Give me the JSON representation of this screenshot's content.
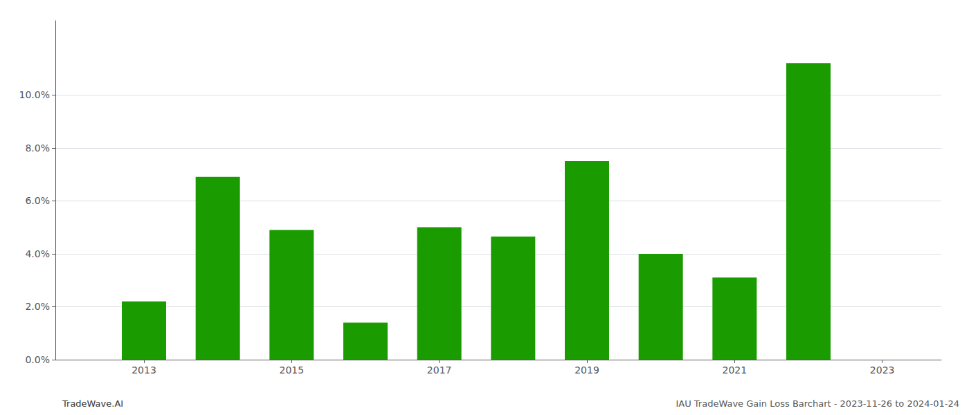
{
  "chart_data": {
    "type": "bar",
    "x": [
      2013,
      2014,
      2015,
      2016,
      2017,
      2018,
      2019,
      2020,
      2021,
      2022
    ],
    "values": [
      0.022,
      0.069,
      0.049,
      0.014,
      0.05,
      0.0465,
      0.075,
      0.04,
      0.031,
      0.112
    ],
    "color": "#1a9c00",
    "xlim": [
      2011.8,
      2023.8
    ],
    "xticks": [
      2013,
      2015,
      2017,
      2019,
      2021,
      2023
    ],
    "ylim": [
      0.0,
      0.128
    ],
    "yticks": [
      {
        "value": 0.0,
        "label": "0.0%"
      },
      {
        "value": 0.02,
        "label": "2.0%"
      },
      {
        "value": 0.04,
        "label": "4.0%"
      },
      {
        "value": 0.06,
        "label": "6.0%"
      },
      {
        "value": 0.08,
        "label": "8.0%"
      },
      {
        "value": 0.1,
        "label": "10.0%"
      }
    ],
    "grid": true,
    "annotations": [
      "TradeWave.AI",
      "IAU TradeWave Gain Loss Barchart - 2023-11-26 to 2024-01-24"
    ]
  }
}
